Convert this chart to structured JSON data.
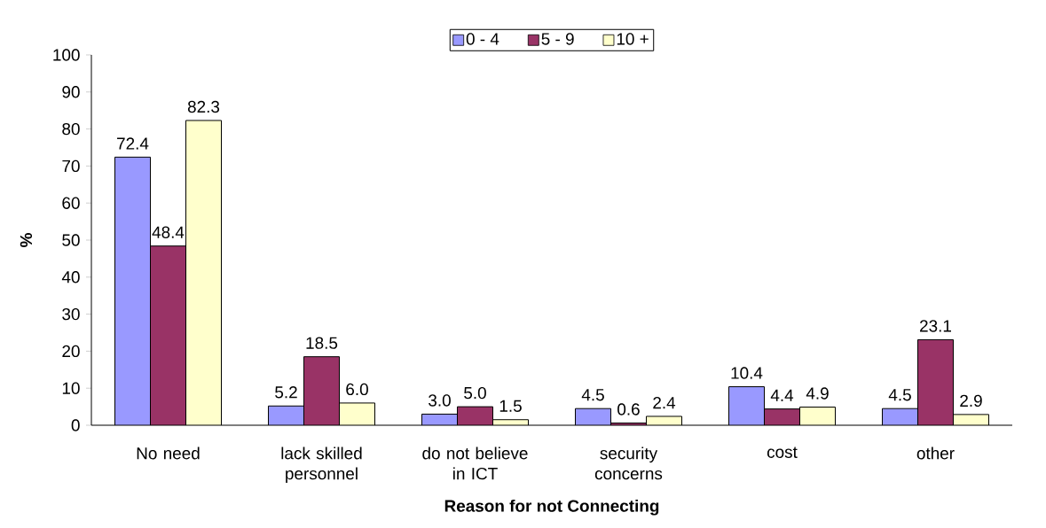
{
  "chart_data": {
    "type": "bar",
    "xlabel": "Reason for not Connecting",
    "ylabel": "%",
    "categories": [
      "No need",
      "lack skilled personnel",
      "do not believe in ICT",
      "security concerns",
      "cost",
      "other"
    ],
    "series": [
      {
        "name": "0 - 4",
        "color": "#9999ff",
        "values": [
          72.4,
          5.2,
          3.0,
          4.5,
          10.4,
          4.5
        ],
        "value_labels": [
          "72.4",
          "5.2",
          "3.0",
          "4.5",
          "10.4",
          "4.5"
        ]
      },
      {
        "name": "5 - 9",
        "color": "#993366",
        "values": [
          48.4,
          18.5,
          5.0,
          0.6,
          4.4,
          23.1
        ],
        "value_labels": [
          "48.4",
          "18.5",
          "5.0",
          "0.6",
          "4.4",
          "23.1"
        ]
      },
      {
        "name": "10 +",
        "color": "#ffffcc",
        "values": [
          82.3,
          6.0,
          1.5,
          2.4,
          4.9,
          2.9
        ],
        "value_labels": [
          "82.3",
          "6.0",
          "1.5",
          "2.4",
          "4.9",
          "2.9"
        ]
      }
    ],
    "ylim": [
      0,
      100
    ],
    "yticks": [
      0,
      10,
      20,
      30,
      40,
      50,
      60,
      70,
      80,
      90,
      100
    ],
    "grid": false,
    "legend": "top"
  }
}
